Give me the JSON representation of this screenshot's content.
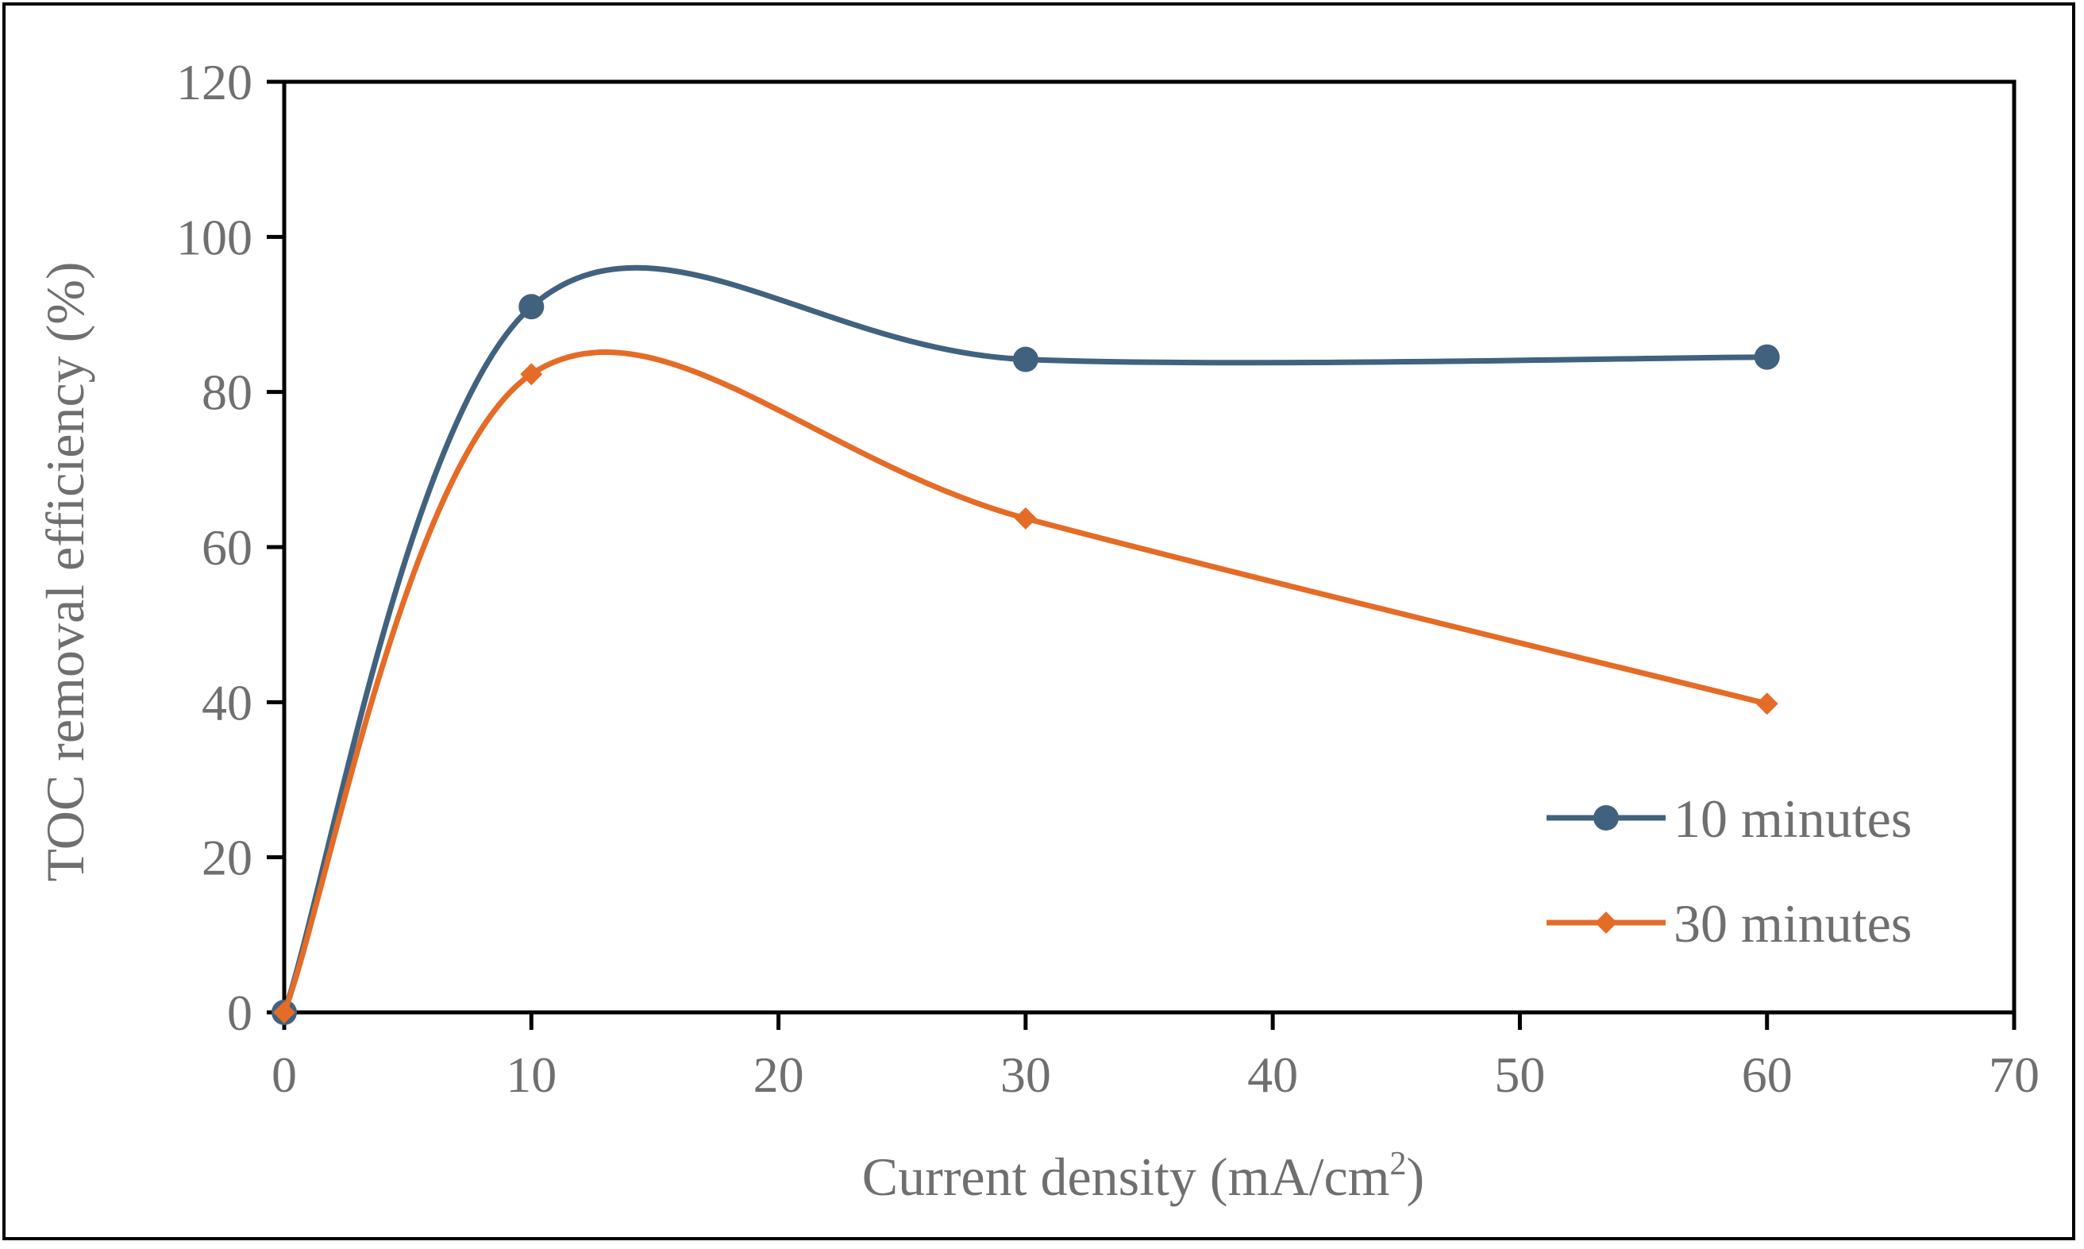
{
  "chart_data": {
    "type": "line",
    "smooth": true,
    "title": "",
    "xlabel": "Current density (mA/cm",
    "xlabel_sup": "2",
    "xlabel_end": ")",
    "ylabel": "TOC removal efficiency (%)",
    "xlim": [
      0,
      70
    ],
    "ylim": [
      0,
      120
    ],
    "x_ticks": [
      "0",
      "10",
      "20",
      "30",
      "40",
      "50",
      "60",
      "70"
    ],
    "y_ticks": [
      "0",
      "20",
      "40",
      "60",
      "80",
      "100",
      "120"
    ],
    "grid": false,
    "legend_position": "bottom-right",
    "series": [
      {
        "name": "10 minutes",
        "color": "#41627f",
        "marker": "circle",
        "x": [
          0,
          10,
          30,
          60
        ],
        "y": [
          0,
          91,
          84.2,
          84.5
        ]
      },
      {
        "name": "30 minutes",
        "color": "#e46c27",
        "marker": "diamond",
        "x": [
          0,
          10,
          30,
          60
        ],
        "y": [
          0,
          82.3,
          63.7,
          39.8
        ]
      }
    ]
  }
}
